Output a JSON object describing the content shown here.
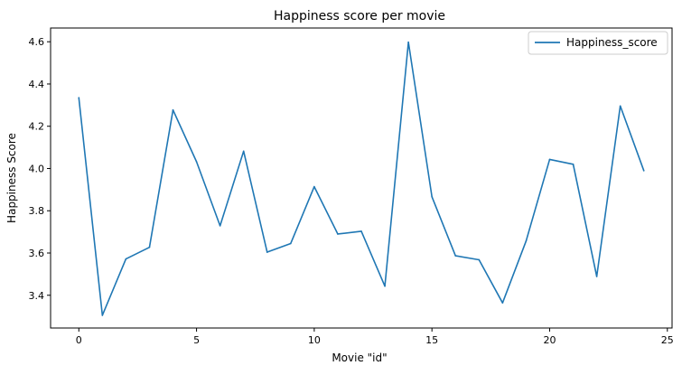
{
  "chart_data": {
    "type": "line",
    "title": "Happiness score per movie",
    "xlabel": "Movie \"id\"",
    "ylabel": "Happiness Score",
    "xlim": [
      -1.2,
      25.2
    ],
    "ylim": [
      3.245,
      4.665
    ],
    "xticks": [
      0,
      5,
      10,
      15,
      20,
      25
    ],
    "yticks": [
      3.4,
      3.6,
      3.8,
      4.0,
      4.2,
      4.4,
      4.6
    ],
    "xtick_labels": [
      "0",
      "5",
      "10",
      "15",
      "20",
      "25"
    ],
    "ytick_labels": [
      "3.4",
      "3.6",
      "3.8",
      "4.0",
      "4.2",
      "4.4",
      "4.6"
    ],
    "grid": false,
    "legend_position": "top-right",
    "color": "#1f77b4",
    "series": [
      {
        "name": "Happiness_score",
        "x": [
          0,
          1,
          2,
          3,
          4,
          5,
          6,
          7,
          8,
          9,
          10,
          11,
          12,
          13,
          14,
          15,
          16,
          17,
          18,
          19,
          20,
          21,
          22,
          23,
          24
        ],
        "values": [
          4.335,
          3.305,
          3.572,
          3.627,
          4.277,
          4.032,
          3.729,
          4.082,
          3.604,
          3.645,
          3.914,
          3.69,
          3.703,
          3.443,
          4.598,
          3.866,
          3.587,
          3.568,
          3.364,
          3.657,
          4.043,
          4.02,
          3.489,
          4.296,
          3.99
        ]
      }
    ]
  }
}
